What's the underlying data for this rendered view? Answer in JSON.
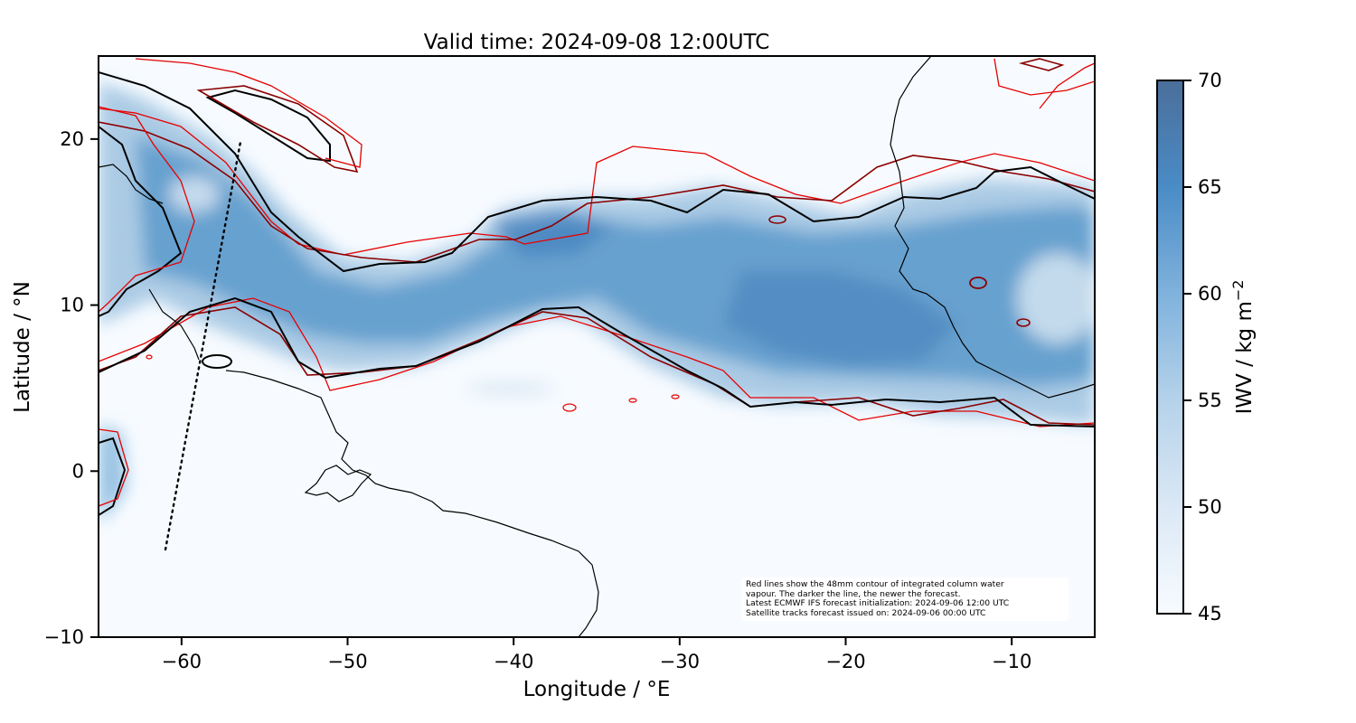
{
  "title": "Valid time: 2024-09-08 12:00UTC",
  "axes": {
    "xlabel": "Longitude / °E",
    "ylabel": "Latitude / °N",
    "xlim": [
      -65,
      -5
    ],
    "ylim": [
      -10,
      25
    ],
    "xticks": [
      -60,
      -50,
      -40,
      -30,
      -20,
      -10
    ],
    "yticks": [
      -10,
      0,
      10,
      20
    ],
    "xtick_labels": [
      "−60",
      "−50",
      "−40",
      "−30",
      "−20",
      "−10"
    ],
    "ytick_labels": [
      "−10",
      "0",
      "10",
      "20"
    ]
  },
  "colorbar": {
    "label": "IWV / kg m",
    "label_superscript": "−2",
    "range": [
      45,
      70
    ],
    "ticks": [
      45,
      50,
      55,
      60,
      65,
      70
    ],
    "colormap": "Blues",
    "low_color": "#f7fbff",
    "high_color": "#4a6e9a"
  },
  "annotation": {
    "lines": [
      "Red lines show the 48mm contour of integrated column water",
      "vapour. The darker the line, the newer the forecast.",
      "Latest ECMWF IFS forecast initialization: 2024-09-06 12:00 UTC",
      "Satellite tracks forecast issued on: 2024-09-06 00:00 UTC"
    ]
  },
  "map_features": {
    "coastline_color": "#000000",
    "contour_colors": [
      "#e60000",
      "#8b0000",
      "#000000"
    ],
    "satellite_track": {
      "style": "dotted",
      "from": {
        "lon": -61,
        "lat": -4.8
      },
      "to": {
        "lon": -56.5,
        "lat": 19.8
      }
    }
  }
}
